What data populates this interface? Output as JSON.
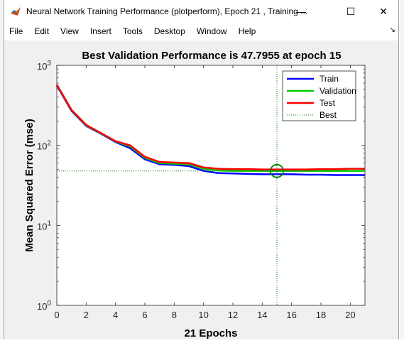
{
  "window": {
    "title": "Neural Network Training Performance (plotperform), Epoch 21 , Training ...",
    "minimize_symbol": "—",
    "maximize_symbol": "☐",
    "close_symbol": "✕"
  },
  "menu": {
    "items": [
      "File",
      "Edit",
      "View",
      "Insert",
      "Tools",
      "Desktop",
      "Window",
      "Help"
    ],
    "dock_symbol": "↘"
  },
  "chart_data": {
    "type": "line",
    "title": "Best Validation Performance is 47.7955 at epoch 15",
    "xlabel": "21 Epochs",
    "ylabel": "Mean Squared Error  (mse)",
    "xlim": [
      0,
      21
    ],
    "ylim": [
      1,
      1000
    ],
    "yscale": "log",
    "xticks": [
      0,
      2,
      4,
      6,
      8,
      10,
      12,
      14,
      16,
      18,
      20
    ],
    "yticks": [
      {
        "value": 1,
        "base": "10",
        "exp": "0"
      },
      {
        "value": 10,
        "base": "10",
        "exp": "1"
      },
      {
        "value": 100,
        "base": "10",
        "exp": "2"
      },
      {
        "value": 1000,
        "base": "10",
        "exp": "3"
      }
    ],
    "x": [
      0,
      1,
      2,
      3,
      4,
      5,
      6,
      7,
      8,
      9,
      10,
      11,
      12,
      13,
      14,
      15,
      16,
      17,
      18,
      19,
      20,
      21
    ],
    "series": [
      {
        "name": "Train",
        "color": "#0000ff",
        "values": [
          560,
          270,
          175,
          140,
          110,
          92,
          67,
          58,
          57,
          55,
          48,
          45,
          44.5,
          44,
          43.5,
          43.5,
          43.5,
          43,
          43,
          42.5,
          42.5,
          42.5
        ]
      },
      {
        "name": "Validation",
        "color": "#00cc00",
        "values": [
          570,
          275,
          178,
          142,
          112,
          97,
          70,
          60,
          59,
          58,
          51,
          48.5,
          48,
          48,
          48,
          47.7955,
          48,
          48,
          48,
          48,
          48,
          48
        ]
      },
      {
        "name": "Test",
        "color": "#ff0000",
        "values": [
          575,
          278,
          180,
          143,
          113,
          100,
          72,
          62,
          61,
          60,
          53,
          51,
          50.5,
          50.5,
          50,
          50,
          50,
          50,
          50.5,
          50.5,
          51,
          51
        ]
      }
    ],
    "best": {
      "name": "Best",
      "epoch": 15,
      "value": 47.7955,
      "color": "#008000"
    },
    "legend_position": "top-right",
    "grid": false
  }
}
